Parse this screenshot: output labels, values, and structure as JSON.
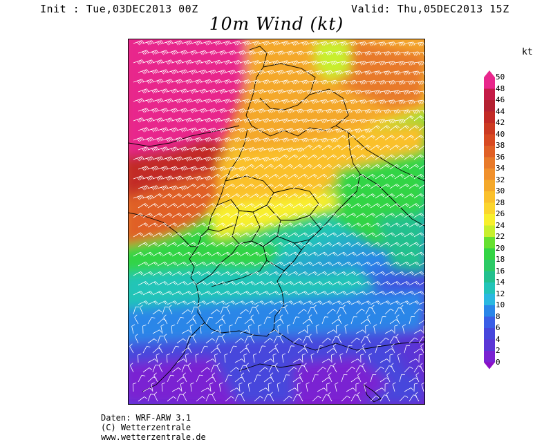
{
  "header": {
    "init": "Init : Tue,03DEC2013 00Z",
    "valid": "Valid: Thu,05DEC2013 15Z"
  },
  "title": "10m Wind (kt)",
  "unit": "kt",
  "colorbar": {
    "labels": [
      "50",
      "48",
      "46",
      "44",
      "42",
      "40",
      "38",
      "36",
      "34",
      "32",
      "30",
      "28",
      "26",
      "24",
      "22",
      "20",
      "18",
      "16",
      "14",
      "12",
      "10",
      "8",
      "6",
      "4",
      "2",
      "0"
    ],
    "colors": [
      "#e8278c",
      "#c41b47",
      "#b42131",
      "#c22a26",
      "#cc3a22",
      "#d84a22",
      "#e06026",
      "#e87a2a",
      "#f0902c",
      "#f4a82a",
      "#fac02c",
      "#fbd52e",
      "#f8ef2e",
      "#c8ef2e",
      "#66e030",
      "#33d444",
      "#2cca66",
      "#22c08e",
      "#22c4b8",
      "#2ab8e0",
      "#2a86e8",
      "#3a5ee6",
      "#4646dc",
      "#5a36d6",
      "#7a22d2",
      "#8a10c6"
    ]
  },
  "credits": {
    "line1": "Daten: WRF-ARW 3.1",
    "line2": "(C) Wetterzentrale",
    "line3": "www.wetterzentrale.de"
  }
}
